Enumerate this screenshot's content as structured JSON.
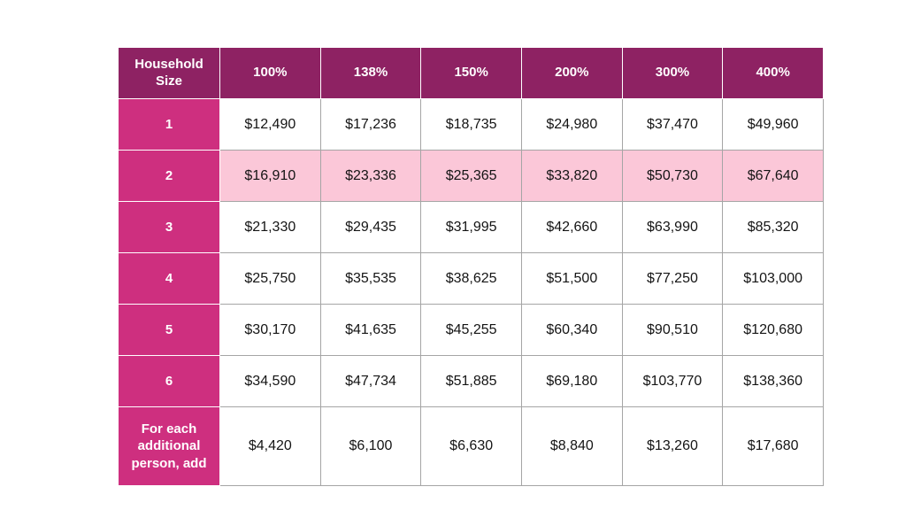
{
  "theme": {
    "header_bg": "#8e2263",
    "row_header_bg": "#ce2f7f",
    "highlight_bg": "#fbc7d8",
    "grid_line": "#a5a5a5",
    "cell_bg": "#ffffff",
    "text": "#141414",
    "header_text": "#ffffff",
    "page_bg": "#ffffff"
  },
  "chart_data": {
    "type": "table",
    "columns": [
      "Household Size",
      "100%",
      "138%",
      "150%",
      "200%",
      "300%",
      "400%"
    ],
    "highlighted_row_label": "2",
    "rows": [
      {
        "label": "1",
        "highlighted": false,
        "values": [
          "$12,490",
          "$17,236",
          "$18,735",
          "$24,980",
          "$37,470",
          "$49,960"
        ]
      },
      {
        "label": "2",
        "highlighted": true,
        "values": [
          "$16,910",
          "$23,336",
          "$25,365",
          "$33,820",
          "$50,730",
          "$67,640"
        ]
      },
      {
        "label": "3",
        "highlighted": false,
        "values": [
          "$21,330",
          "$29,435",
          "$31,995",
          "$42,660",
          "$63,990",
          "$85,320"
        ]
      },
      {
        "label": "4",
        "highlighted": false,
        "values": [
          "$25,750",
          "$35,535",
          "$38,625",
          "$51,500",
          "$77,250",
          "$103,000"
        ]
      },
      {
        "label": "5",
        "highlighted": false,
        "values": [
          "$30,170",
          "$41,635",
          "$45,255",
          "$60,340",
          "$90,510",
          "$120,680"
        ]
      },
      {
        "label": "6",
        "highlighted": false,
        "values": [
          "$34,590",
          "$47,734",
          "$51,885",
          "$69,180",
          "$103,770",
          "$138,360"
        ]
      },
      {
        "label": "For each additional person, add",
        "highlighted": false,
        "values": [
          "$4,420",
          "$6,100",
          "$6,630",
          "$8,840",
          "$13,260",
          "$17,680"
        ]
      }
    ]
  }
}
